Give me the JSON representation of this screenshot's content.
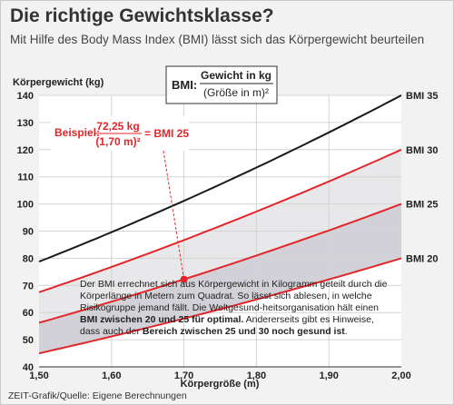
{
  "header": {
    "title": "Die richtige Gewichtsklasse?",
    "subtitle": "Mit Hilfe des Body Mass Index (BMI) lässt sich das Körpergewicht beurteilen"
  },
  "formula": {
    "label": "BMI:",
    "numerator": "Gewicht in kg",
    "denominator": "(Größe in m)²"
  },
  "example": {
    "label": "Beispiel:",
    "numerator": "72,25 kg",
    "denominator": "(1,70 m)²",
    "result": "= BMI 25",
    "point": {
      "x": 1.7,
      "y": 72.25
    }
  },
  "note": {
    "p1": "Der BMI errechnet sich aus Körpergewicht in Kilogramm geteilt durch die Körperlänge in Metern zum Quadrat. So lässt sich ablesen, in welche Risikogruppe jemand fällt. Die Weltgesund-heitsorganisation hält einen ",
    "b1": "BMI zwischen 20 und 25 für optimal.",
    "p2": " Andererseits gibt es Hinweise, dass auch der ",
    "b2": "Bereich zwischen 25 und 30 noch gesund ist",
    "p3": "."
  },
  "source": "ZEIT-Grafik/Quelle: Eigene Berechnungen",
  "colors": {
    "red": "#e3262b",
    "black": "#1a1a1a",
    "band_optimal": "#d1d1d7",
    "band_upper": "#e8e8ea",
    "plot_bg": "#ffffff",
    "grid": "#d4d4d4"
  },
  "chart_data": {
    "type": "line",
    "ylabel": "Körpergewicht (kg)",
    "xlabel": "Körpergröße (m)",
    "xlim": [
      1.5,
      2.0
    ],
    "ylim": [
      40,
      140
    ],
    "x_ticks": [
      "1,50",
      "1,60",
      "1,70",
      "1,80",
      "1,90",
      "2,00"
    ],
    "y_ticks": [
      "40",
      "50",
      "60",
      "70",
      "80",
      "90",
      "100",
      "110",
      "120",
      "130",
      "140"
    ],
    "x_tick_values": [
      1.5,
      1.6,
      1.7,
      1.8,
      1.9,
      2.0
    ],
    "y_tick_values": [
      40,
      50,
      60,
      70,
      80,
      90,
      100,
      110,
      120,
      130,
      140
    ],
    "grid": true,
    "series": [
      {
        "name": "BMI 35",
        "bmi": 35,
        "color": "black",
        "x": [
          1.5,
          1.6,
          1.7,
          1.8,
          1.9,
          2.0
        ],
        "values": [
          78.75,
          89.6,
          101.15,
          113.4,
          126.35,
          140
        ]
      },
      {
        "name": "BMI 30",
        "bmi": 30,
        "color": "red",
        "x": [
          1.5,
          1.6,
          1.7,
          1.8,
          1.9,
          2.0
        ],
        "values": [
          67.5,
          76.8,
          86.7,
          97.2,
          108.3,
          120
        ]
      },
      {
        "name": "BMI 25",
        "bmi": 25,
        "color": "red",
        "x": [
          1.5,
          1.6,
          1.7,
          1.8,
          1.9,
          2.0
        ],
        "values": [
          56.25,
          64.0,
          72.25,
          81.0,
          90.25,
          100
        ]
      },
      {
        "name": "BMI 20",
        "bmi": 20,
        "color": "red",
        "x": [
          1.5,
          1.6,
          1.7,
          1.8,
          1.9,
          2.0
        ],
        "values": [
          45.0,
          51.2,
          57.8,
          64.8,
          72.2,
          80
        ]
      }
    ]
  }
}
